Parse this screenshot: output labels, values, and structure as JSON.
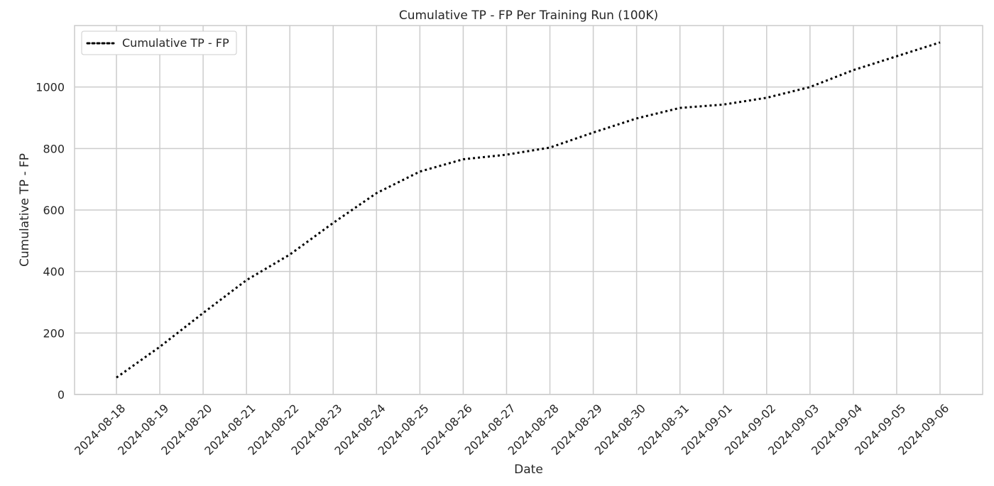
{
  "chart_data": {
    "type": "line",
    "title": "Cumulative TP - FP Per Training Run (100K)",
    "xlabel": "Date",
    "ylabel": "Cumulative TP - FP",
    "x": [
      "2024-08-18",
      "2024-08-19",
      "2024-08-20",
      "2024-08-21",
      "2024-08-22",
      "2024-08-23",
      "2024-08-24",
      "2024-08-25",
      "2024-08-26",
      "2024-08-27",
      "2024-08-28",
      "2024-08-29",
      "2024-08-30",
      "2024-08-31",
      "2024-09-01",
      "2024-09-02",
      "2024-09-03",
      "2024-09-04",
      "2024-09-05",
      "2024-09-06"
    ],
    "series": [
      {
        "name": "Cumulative TP - FP",
        "values": [
          55,
          155,
          265,
          372,
          455,
          558,
          655,
          725,
          765,
          780,
          803,
          852,
          898,
          932,
          943,
          965,
          1000,
          1055,
          1100,
          1145
        ],
        "color": "#000000",
        "line_style": "dotted"
      }
    ],
    "y_ticks": [
      0,
      200,
      400,
      600,
      800,
      1000
    ],
    "ylim": [
      0,
      1200
    ],
    "grid": true,
    "legend_position": "top-left",
    "tick_label_rotation": 45
  }
}
